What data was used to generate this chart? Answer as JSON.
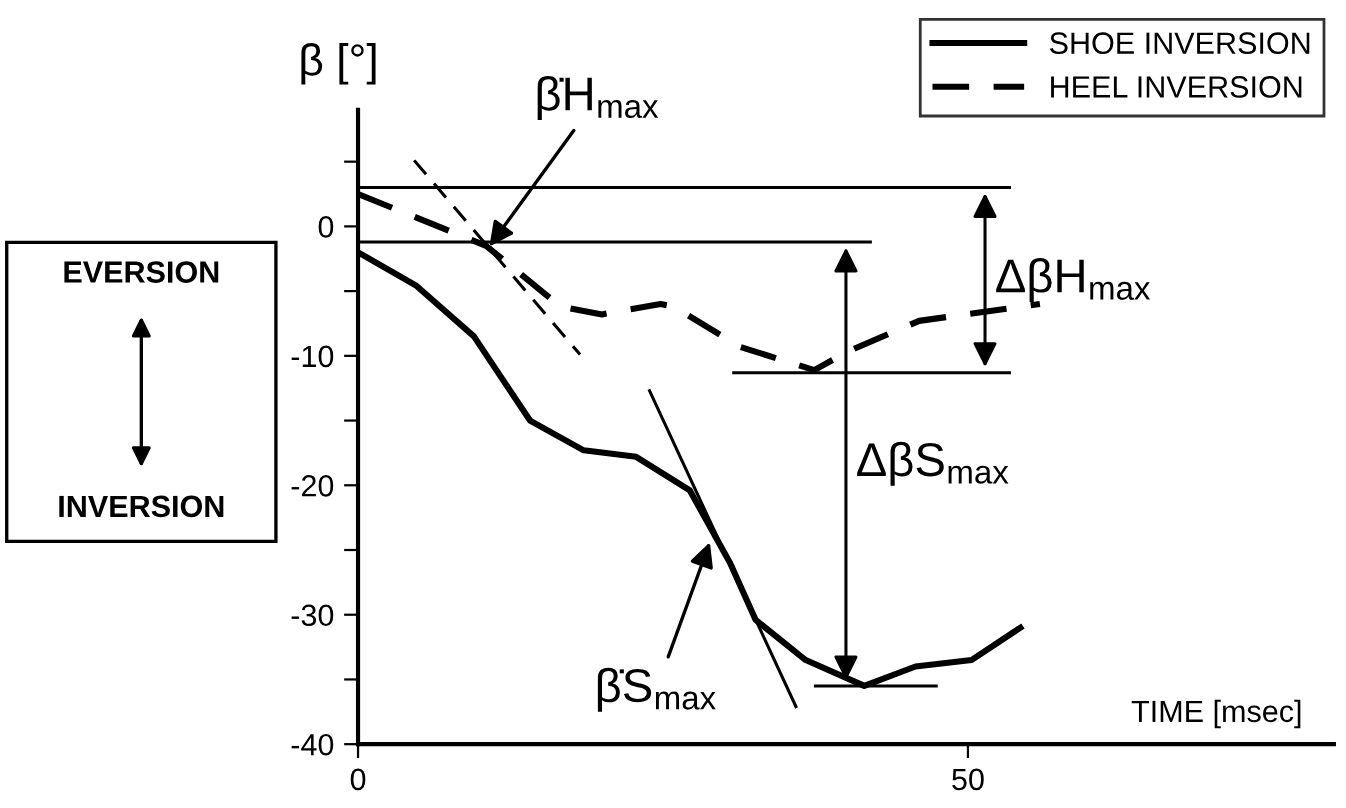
{
  "chart_data": {
    "type": "line",
    "ylabel": "β [°]",
    "xlabel": "TIME [msec]",
    "xlim": [
      0,
      80
    ],
    "xticks": [
      0,
      50
    ],
    "ylim": [
      -40,
      9
    ],
    "yticks": [
      -40,
      {
        "value": -35,
        "label": null
      },
      -30,
      {
        "value": -25,
        "label": null
      },
      -20,
      {
        "value": -15,
        "label": null
      },
      -10,
      {
        "value": -5,
        "label": null
      },
      0,
      {
        "value": 5,
        "label": null
      }
    ],
    "grid": false,
    "legend": "top right",
    "marker": "none",
    "series": [
      {
        "name": "SHOE INVERSION",
        "color": "#000000",
        "line_style": "solid",
        "x": [
          0,
          4.8,
          9.5,
          14.1,
          18.5,
          22.8,
          27.2,
          30.5,
          32.6,
          36.7,
          41.5,
          45.7,
          50.3,
          54.3
        ],
        "values": [
          -2,
          -4.6,
          -8.5,
          -15,
          -17.3,
          -17.8,
          -20.4,
          -26,
          -30.4,
          -33.5,
          -35.5,
          -34,
          -33.5,
          -31
        ]
      },
      {
        "name": "HEEL INVERSION",
        "color": "#000000",
        "line_style": "dashed",
        "x": [
          0,
          10.5,
          16.6,
          20,
          24.8,
          25.9,
          31.3,
          37.4,
          40.3,
          46,
          55.9
        ],
        "values": [
          2.5,
          -1.5,
          -6.2,
          -6.8,
          -6,
          -6.2,
          -9.3,
          -11.1,
          -9.6,
          -7.3,
          -6
        ]
      },
      {
        "color": "#000000",
        "line_style": "dashed",
        "x": [
          4.6,
          18.2
        ],
        "values": [
          5.1,
          -9.9
        ]
      },
      {
        "color": "#000000",
        "line_style": "solid",
        "x": [
          23.9,
          35.9
        ],
        "values": [
          -12.7,
          -37.1
        ]
      },
      {
        "color": "#000000",
        "line_style": "solid",
        "x": [
          0,
          53.4
        ],
        "values": [
          3,
          3
        ]
      },
      {
        "color": "#000000",
        "line_style": "solid",
        "x": [
          0,
          42
        ],
        "values": [
          -1.2,
          -1.2
        ]
      },
      {
        "color": "#000000",
        "line_style": "solid",
        "x": [
          30.8,
          53.4
        ],
        "values": [
          -11.3,
          -11.3
        ]
      },
      {
        "color": "#000000",
        "line_style": "solid",
        "x": [
          37.5,
          47.4
        ],
        "values": [
          -35.5,
          -35.5
        ]
      }
    ],
    "annotations": [
      {
        "text": "β̇H$_{max}$",
        "x": 10.5,
        "y": -1.9
      },
      {
        "text": "β̇S$_{max}$",
        "x": 29,
        "y": -24
      },
      "ΔβH$_{max}$",
      "ΔβS$_{max}$",
      "EVERSION",
      "INVERSION"
    ]
  }
}
